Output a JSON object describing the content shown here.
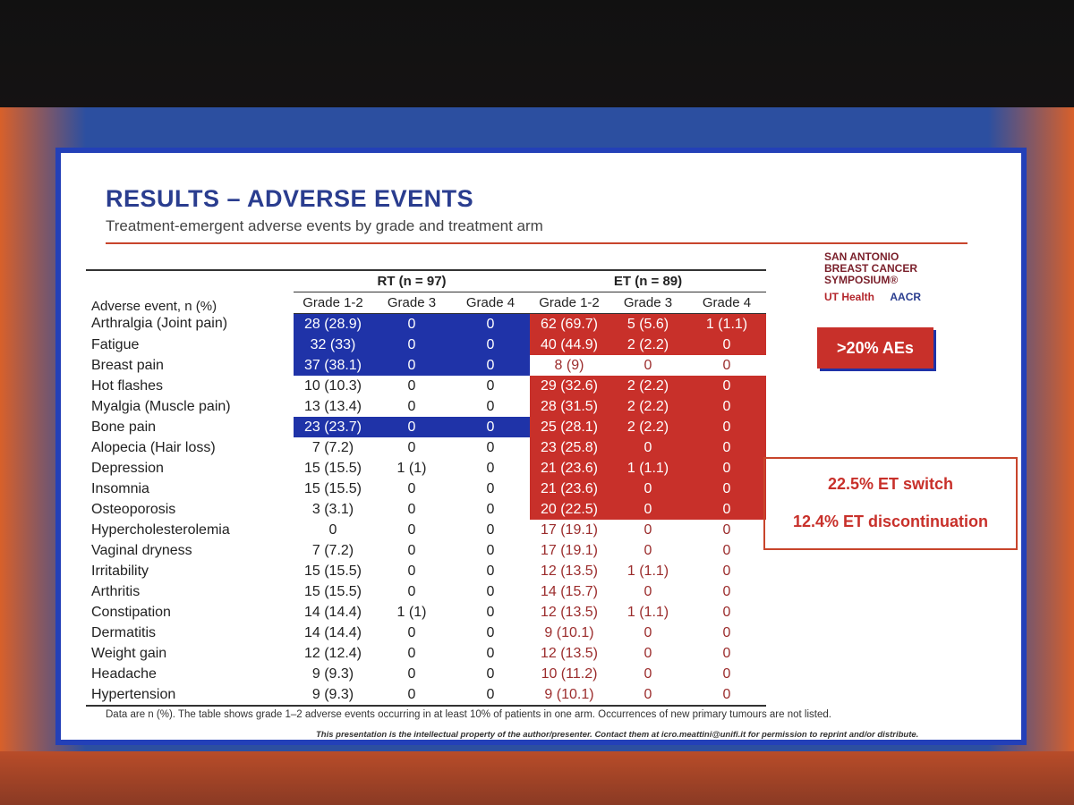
{
  "header": {
    "title": "RESULTS – ADVERSE EVENTS",
    "subtitle": "Treatment-emergent adverse events by grade and treatment arm"
  },
  "logo": {
    "lines": [
      "SAN ANTONIO",
      "BREAST CANCER",
      "SYMPOSIUM®"
    ],
    "partners": [
      "UT Health",
      "AACR"
    ]
  },
  "table": {
    "row_header": "Adverse event, n (%)",
    "groups": [
      "RT (n = 97)",
      "ET (n = 89)"
    ],
    "columns": [
      "Grade 1-2",
      "Grade 3",
      "Grade 4",
      "Grade 1-2",
      "Grade 3",
      "Grade 4"
    ],
    "rows": [
      [
        "Arthralgia (Joint pain)",
        "28 (28.9)",
        "0",
        "0",
        "62 (69.7)",
        "5 (5.6)",
        "1 (1.1)"
      ],
      [
        "Fatigue",
        "32 (33)",
        "0",
        "0",
        "40 (44.9)",
        "2 (2.2)",
        "0"
      ],
      [
        "Breast pain",
        "37 (38.1)",
        "0",
        "0",
        "8 (9)",
        "0",
        "0"
      ],
      [
        "Hot flashes",
        "10 (10.3)",
        "0",
        "0",
        "29 (32.6)",
        "2 (2.2)",
        "0"
      ],
      [
        "Myalgia (Muscle pain)",
        "13 (13.4)",
        "0",
        "0",
        "28 (31.5)",
        "2 (2.2)",
        "0"
      ],
      [
        "Bone pain",
        "23 (23.7)",
        "0",
        "0",
        "25 (28.1)",
        "2 (2.2)",
        "0"
      ],
      [
        "Alopecia (Hair loss)",
        "7 (7.2)",
        "0",
        "0",
        "23 (25.8)",
        "0",
        "0"
      ],
      [
        "Depression",
        "15 (15.5)",
        "1 (1)",
        "0",
        "21 (23.6)",
        "1 (1.1)",
        "0"
      ],
      [
        "Insomnia",
        "15 (15.5)",
        "0",
        "0",
        "21 (23.6)",
        "0",
        "0"
      ],
      [
        "Osteoporosis",
        "3 (3.1)",
        "0",
        "0",
        "20 (22.5)",
        "0",
        "0"
      ],
      [
        "Hypercholesterolemia",
        "0",
        "0",
        "0",
        "17 (19.1)",
        "0",
        "0"
      ],
      [
        "Vaginal dryness",
        "7 (7.2)",
        "0",
        "0",
        "17 (19.1)",
        "0",
        "0"
      ],
      [
        "Irritability",
        "15 (15.5)",
        "0",
        "0",
        "12 (13.5)",
        "1 (1.1)",
        "0"
      ],
      [
        "Arthritis",
        "15 (15.5)",
        "0",
        "0",
        "14 (15.7)",
        "0",
        "0"
      ],
      [
        "Constipation",
        "14 (14.4)",
        "1 (1)",
        "0",
        "12 (13.5)",
        "1 (1.1)",
        "0"
      ],
      [
        "Dermatitis",
        "14 (14.4)",
        "0",
        "0",
        "9 (10.1)",
        "0",
        "0"
      ],
      [
        "Weight gain",
        "12 (12.4)",
        "0",
        "0",
        "12 (13.5)",
        "0",
        "0"
      ],
      [
        "Headache",
        "9 (9.3)",
        "0",
        "0",
        "10 (11.2)",
        "0",
        "0"
      ],
      [
        "Hypertension",
        "9 (9.3)",
        "0",
        "0",
        "9 (10.1)",
        "0",
        "0"
      ]
    ]
  },
  "callouts": {
    "badge": ">20% AEs",
    "switch": "22.5% ET switch",
    "discontinuation": "12.4% ET discontinuation"
  },
  "footnote": "Data are n (%). The table shows grade 1–2 adverse events occurring in at least 10% of patients in one arm. Occurrences of new primary tumours are not listed.",
  "copyright": "This presentation is the intellectual property of the author/presenter. Contact them at icro.meattini@unifi.it for permission to reprint and/or distribute."
}
